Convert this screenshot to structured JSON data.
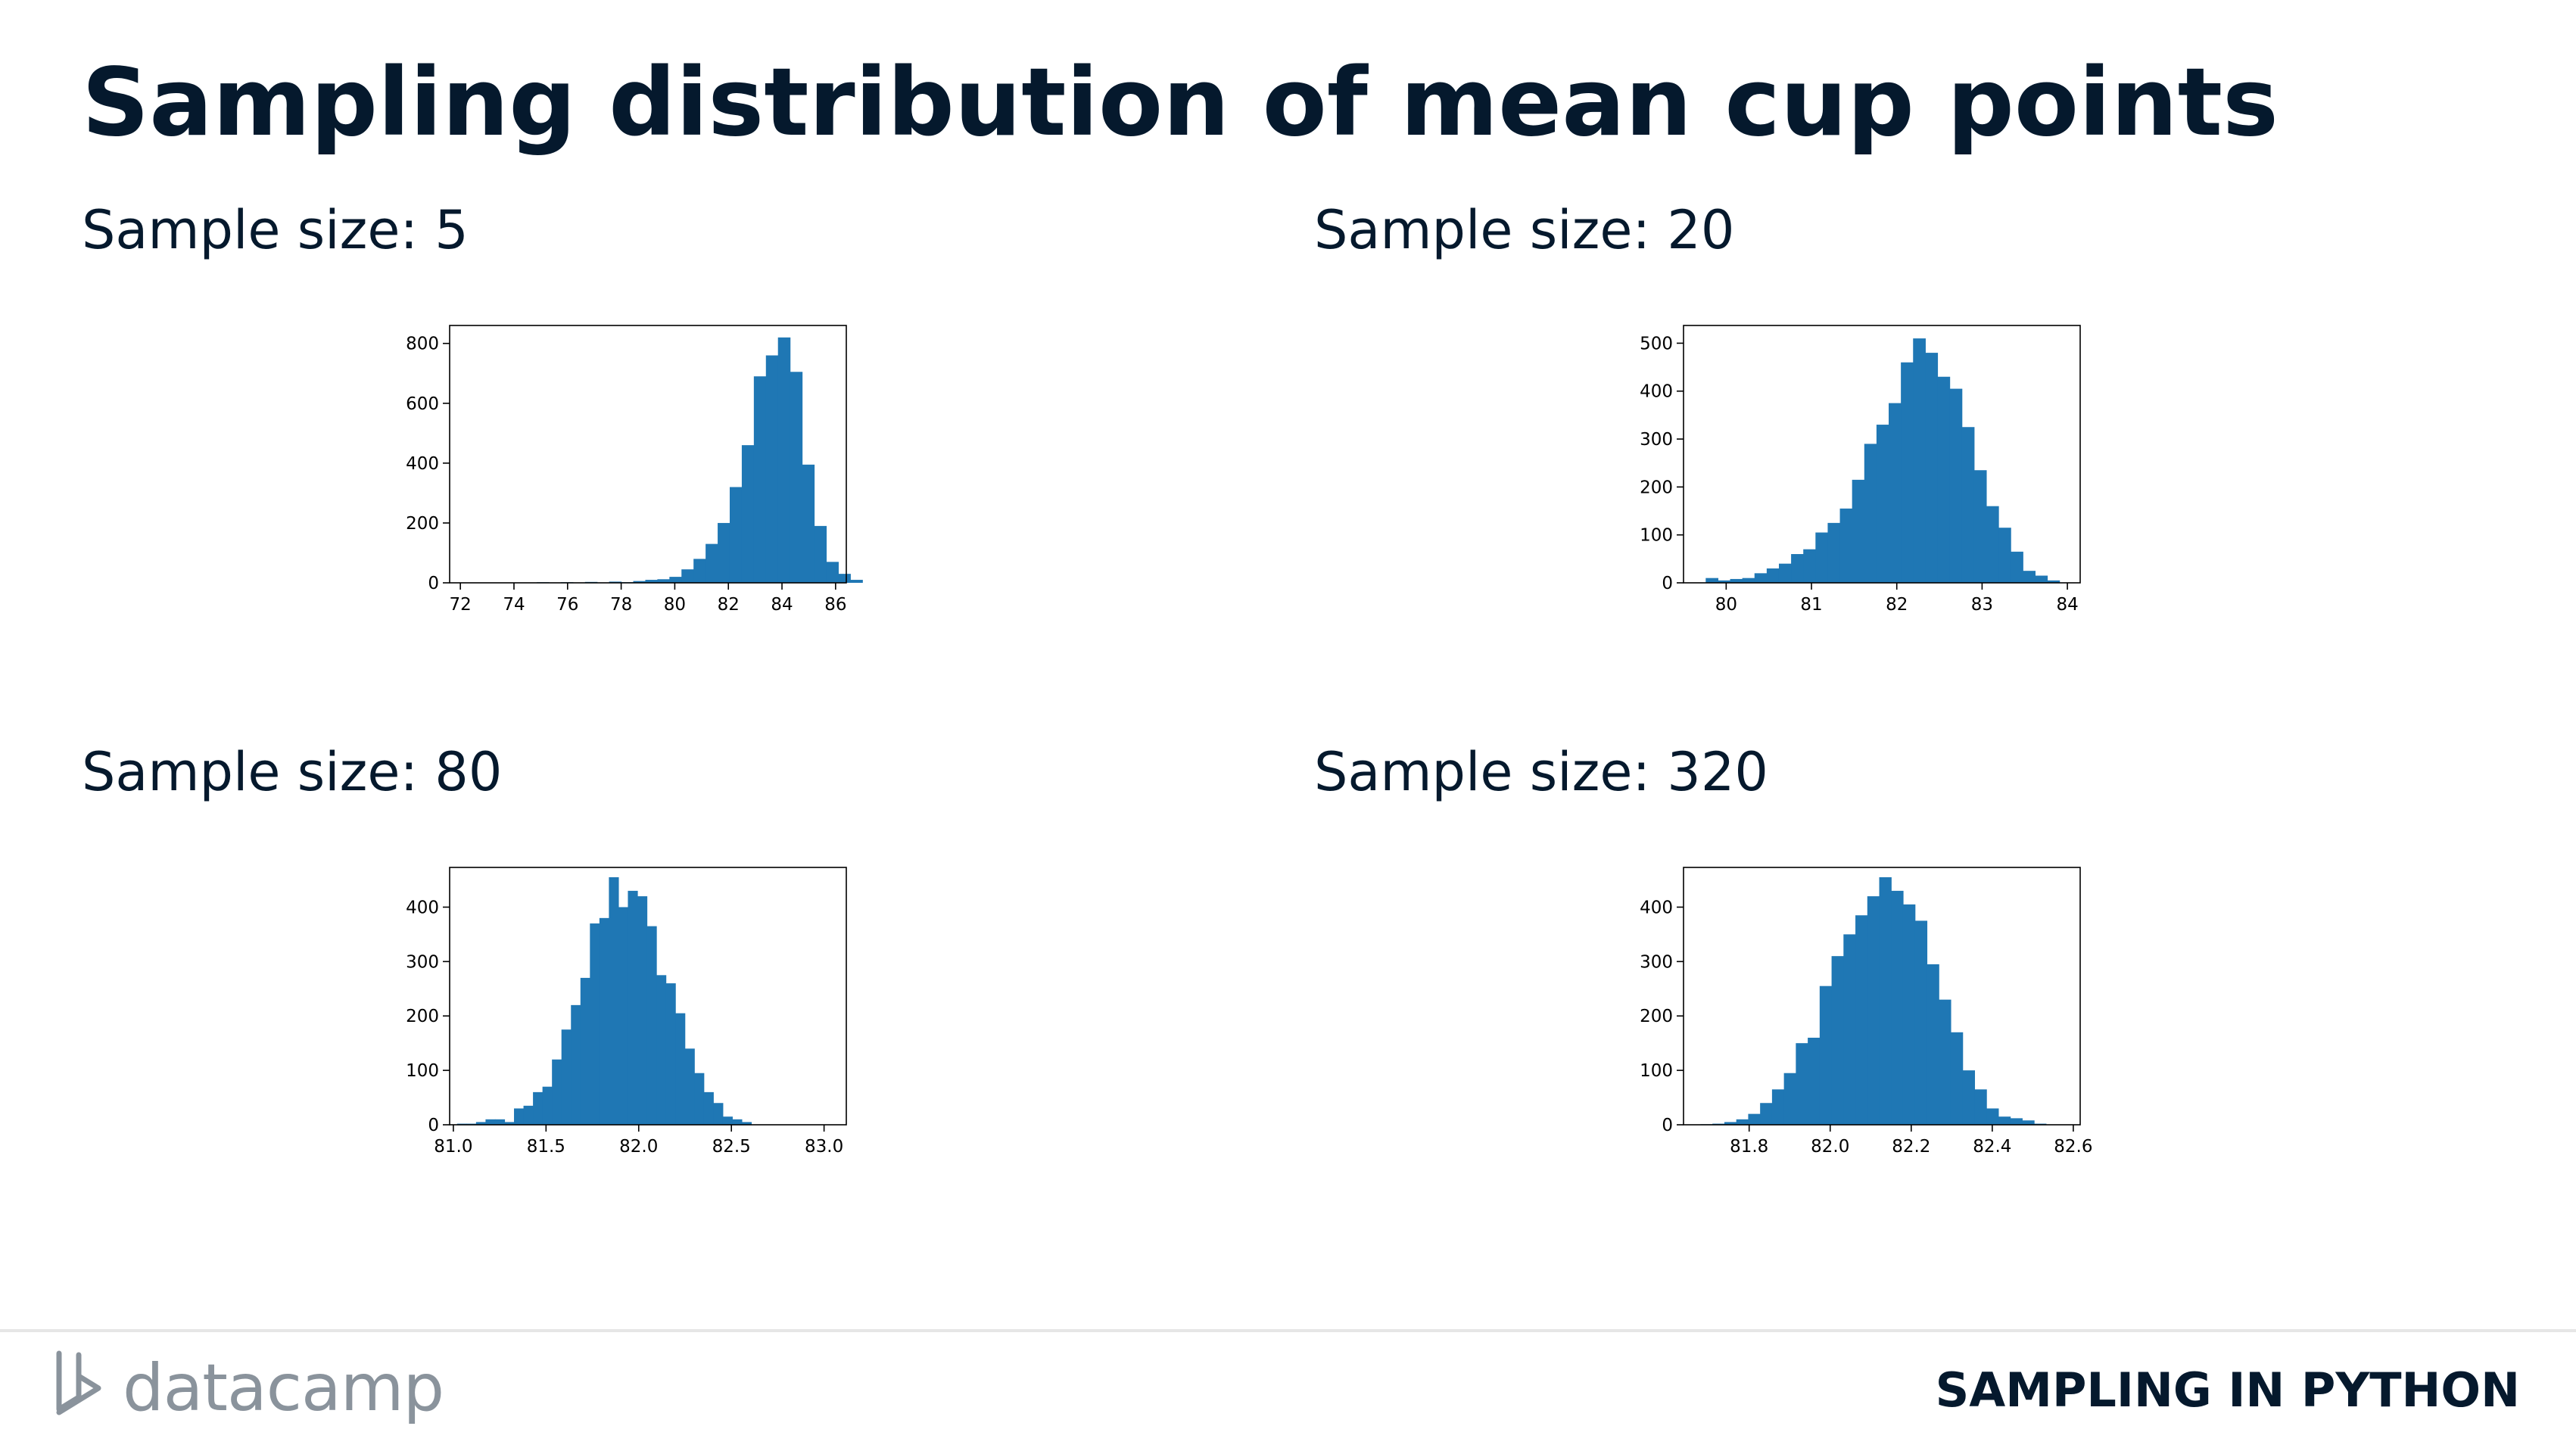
{
  "slide": {
    "title": "Sampling distribution of mean cup points",
    "footer_title": "SAMPLING IN PYTHON",
    "logo_text": "datacamp",
    "logo_icon": "datacamp-logo-icon",
    "bar_color": "#1f77b4"
  },
  "chart_data": [
    {
      "type": "bar",
      "title": "Sample size: 5",
      "xlabel": "",
      "ylabel": "",
      "xlim": [
        71.6,
        86.4
      ],
      "ylim": [
        0,
        860
      ],
      "xticks": [
        72,
        74,
        76,
        78,
        80,
        82,
        84,
        86
      ],
      "yticks": [
        0,
        200,
        400,
        600,
        800
      ],
      "bin_start": 72.15,
      "bin_width": 0.45,
      "values": [
        1,
        0,
        1,
        0,
        1,
        0,
        2,
        0,
        2,
        0,
        3,
        0,
        4,
        2,
        6,
        10,
        12,
        20,
        45,
        80,
        130,
        200,
        320,
        460,
        690,
        760,
        820,
        705,
        395,
        190,
        70,
        30,
        10
      ],
      "grid": false,
      "legend": "none"
    },
    {
      "type": "bar",
      "title": "Sample size: 20",
      "xlabel": "",
      "ylabel": "",
      "xlim": [
        79.5,
        84.15
      ],
      "ylim": [
        0,
        537
      ],
      "xticks": [
        80,
        81,
        82,
        83,
        84
      ],
      "yticks": [
        0,
        100,
        200,
        300,
        400,
        500
      ],
      "bin_start": 79.76,
      "bin_width": 0.143,
      "values": [
        10,
        5,
        8,
        10,
        20,
        30,
        40,
        60,
        70,
        105,
        125,
        155,
        215,
        290,
        330,
        375,
        460,
        510,
        480,
        430,
        405,
        325,
        235,
        160,
        115,
        65,
        25,
        15,
        5
      ],
      "grid": false,
      "legend": "none"
    },
    {
      "type": "bar",
      "title": "Sample size: 80",
      "xlabel": "",
      "ylabel": "",
      "xlim": [
        80.98,
        83.12
      ],
      "ylim": [
        0,
        473
      ],
      "xticks": [
        81.0,
        81.5,
        82.0,
        82.5,
        83.0
      ],
      "yticks": [
        0,
        100,
        200,
        300,
        400
      ],
      "bin_start": 81.02,
      "bin_width": 0.0512,
      "values": [
        2,
        2,
        5,
        10,
        10,
        5,
        30,
        35,
        60,
        70,
        120,
        175,
        220,
        270,
        370,
        380,
        455,
        400,
        430,
        420,
        365,
        275,
        260,
        205,
        140,
        95,
        60,
        40,
        15,
        10,
        5
      ],
      "grid": false,
      "legend": "none"
    },
    {
      "type": "bar",
      "title": "Sample size: 320",
      "xlabel": "",
      "ylabel": "",
      "xlim": [
        81.638,
        82.617
      ],
      "ylim": [
        0,
        473
      ],
      "xticks": [
        81.8,
        82.0,
        82.2,
        82.4,
        82.6
      ],
      "yticks": [
        0,
        100,
        200,
        300,
        400
      ],
      "bin_start": 81.68,
      "bin_width": 0.0294,
      "values": [
        1,
        2,
        5,
        10,
        20,
        40,
        65,
        95,
        150,
        160,
        255,
        310,
        350,
        385,
        420,
        455,
        430,
        405,
        375,
        295,
        230,
        170,
        100,
        65,
        30,
        15,
        12,
        8,
        2
      ],
      "grid": false,
      "legend": "none"
    }
  ]
}
